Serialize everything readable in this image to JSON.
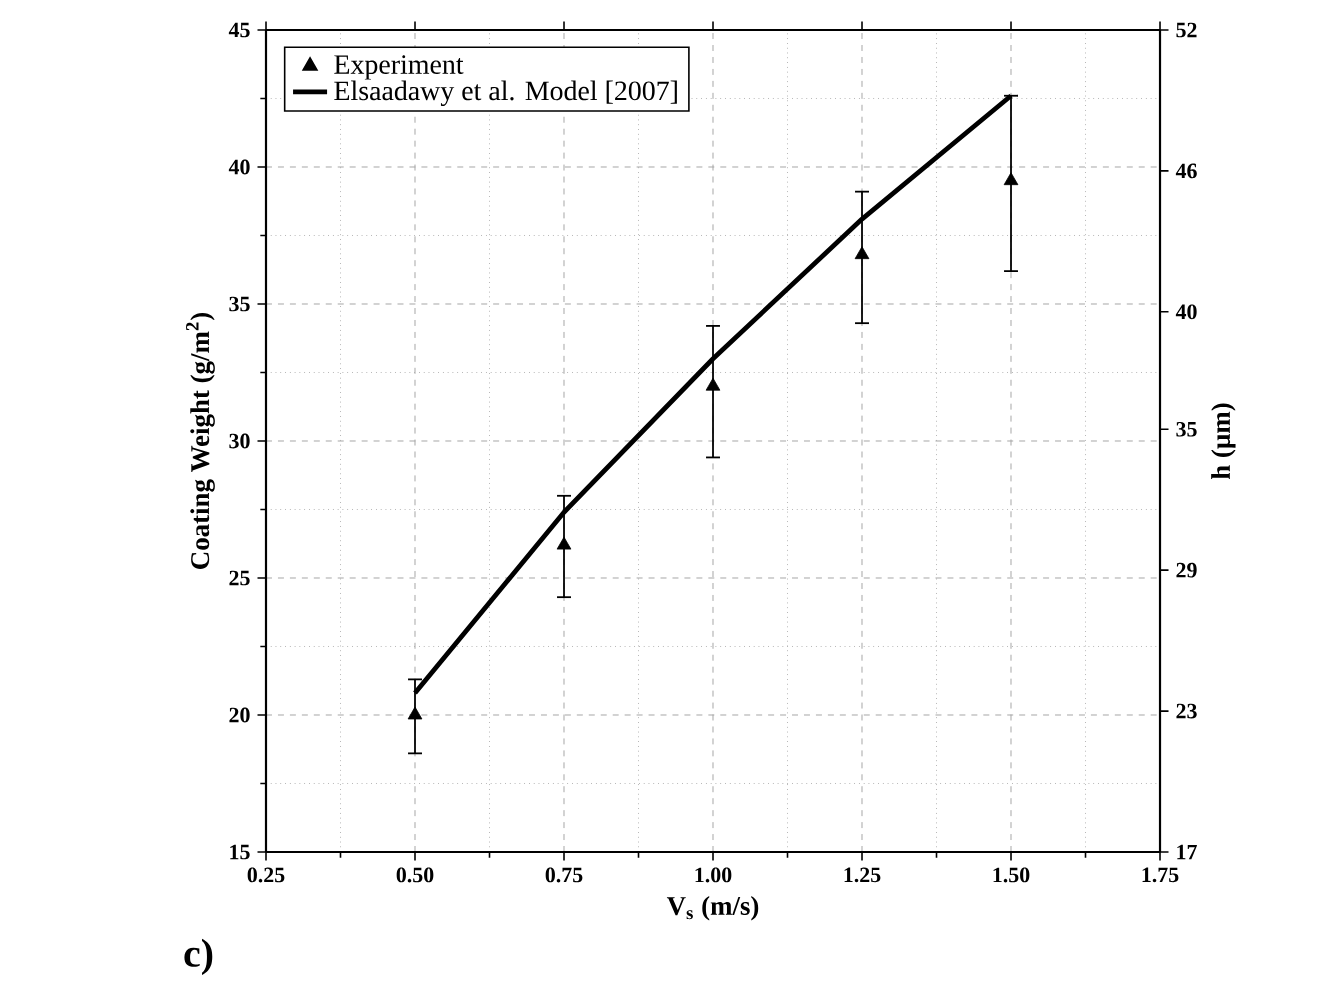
{
  "chart_data": {
    "type": "scatter",
    "xlabel": "V$_{s}$ (m/s)",
    "ylabel": "Coating Weight (g/m$^{2}$)",
    "y2label": "h (µm)",
    "annotations": [
      "c)"
    ],
    "xlim": [
      0.25,
      1.75
    ],
    "xticks": [
      0.25,
      {
        "value": 0.5,
        "label": "0.50"
      },
      0.75,
      {
        "value": 1.0,
        "label": "1.00"
      },
      1.25,
      {
        "value": 1.5,
        "label": "1.50"
      },
      1.75
    ],
    "ylim": [
      15,
      45
    ],
    "yticks": [
      15,
      20,
      25,
      30,
      35,
      40,
      45
    ],
    "y2lim": [
      17,
      52
    ],
    "y2ticks": [
      17,
      23,
      29,
      35,
      40,
      46,
      52
    ],
    "grid": true,
    "legend": "top left",
    "x": [
      0.5,
      0.75,
      1.0,
      1.25,
      1.5
    ],
    "series": [
      {
        "name": "Experiment",
        "color": "#000000",
        "marker": "triangle",
        "values": [
          20.0,
          26.2,
          32.0,
          36.8,
          39.5
        ],
        "errors": [
          [
            18.6,
            21.3
          ],
          [
            24.3,
            28.0
          ],
          [
            29.4,
            34.2
          ],
          [
            34.3,
            39.1
          ],
          [
            36.2,
            42.6
          ]
        ]
      },
      {
        "name": "Elsaadawy et al. Model [2007]",
        "type": "line",
        "color": "#000000",
        "marker": "none",
        "values": [
          20.8,
          27.4,
          33.0,
          38.1,
          42.6
        ]
      }
    ]
  }
}
